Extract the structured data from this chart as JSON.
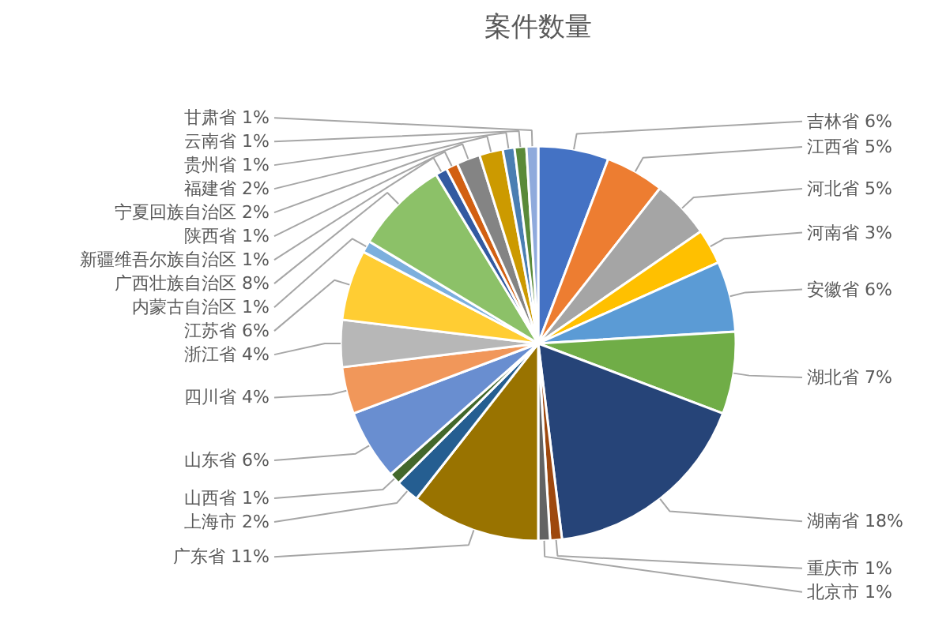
{
  "chart_data": {
    "type": "pie",
    "title": "案件数量",
    "categories": [
      "吉林省",
      "江西省",
      "河北省",
      "河南省",
      "安徽省",
      "湖北省",
      "湖南省",
      "重庆市",
      "北京市",
      "广东省",
      "上海市",
      "山西省",
      "山东省",
      "四川省",
      "浙江省",
      "江苏省",
      "内蒙古自治区",
      "广西壮族自治区",
      "新疆维吾尔族自治区",
      "陕西省",
      "宁夏回族自治区",
      "福建省",
      "贵州省",
      "云南省",
      "甘肃省"
    ],
    "values": [
      6,
      5,
      5,
      3,
      6,
      7,
      18,
      1,
      1,
      11,
      2,
      1,
      6,
      4,
      4,
      6,
      1,
      8,
      1,
      1,
      2,
      2,
      1,
      1,
      1
    ],
    "value_labels": [
      "6%",
      "5%",
      "5%",
      "3%",
      "6%",
      "7%",
      "18%",
      "1%",
      "1%",
      "11%",
      "2%",
      "1%",
      "6%",
      "4%",
      "4%",
      "6%",
      "1%",
      "8%",
      "1%",
      "1%",
      "2%",
      "2%",
      "1%",
      "1%",
      "1%"
    ],
    "colors": [
      "#4472c4",
      "#ed7d31",
      "#a5a5a5",
      "#ffc000",
      "#5b9bd5",
      "#70ad47",
      "#264478",
      "#9e480e",
      "#636363",
      "#997300",
      "#255e91",
      "#43682b",
      "#698ed0",
      "#f1975a",
      "#b7b7b7",
      "#ffcd33",
      "#7cafdd",
      "#8cc168",
      "#335aa1",
      "#d26012",
      "#848484",
      "#cc9a00",
      "#4a7eb2",
      "#5a8a39",
      "#8faadc"
    ]
  }
}
